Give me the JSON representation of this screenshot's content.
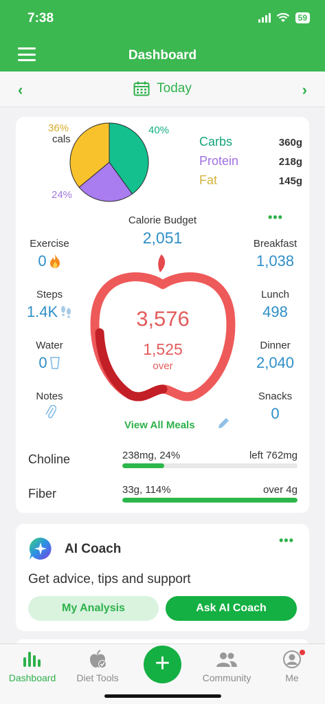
{
  "status": {
    "time": "7:38",
    "battery": "59"
  },
  "nav": {
    "title": "Dashboard"
  },
  "date": {
    "label": "Today"
  },
  "colors": {
    "accent": "#3cb851",
    "carbs": "#13c08e",
    "protein": "#a97cf0",
    "fat": "#f8c22d",
    "value_blue": "#2f8fc8",
    "apple_red": "#e35c5c"
  },
  "pie": {
    "slices": [
      {
        "name": "Carbs",
        "percent": 40,
        "label": "40%",
        "color": "#13c08e"
      },
      {
        "name": "Protein",
        "percent": 24,
        "label": "24%",
        "color": "#a97cf0"
      },
      {
        "name": "Fat",
        "percent": 36,
        "label": "36%",
        "color": "#f8c22d"
      }
    ],
    "cals_label": "cals"
  },
  "macros": [
    {
      "name": "Carbs",
      "value": "360g",
      "color": "#13c08e"
    },
    {
      "name": "Protein",
      "value": "218g",
      "color": "#a97cf0"
    },
    {
      "name": "Fat",
      "value": "145g",
      "color": "#d4b43c"
    }
  ],
  "budget": {
    "label": "Calorie Budget",
    "value": "2,051"
  },
  "left_stats": [
    {
      "label": "Exercise",
      "value": "0",
      "icon": "flame-icon"
    },
    {
      "label": "Steps",
      "value": "1.4K",
      "icon": "footsteps-icon"
    },
    {
      "label": "Water",
      "value": "0",
      "icon": "water-glass-icon"
    },
    {
      "label": "Notes",
      "value": "",
      "icon": "paperclip-icon"
    }
  ],
  "right_stats": [
    {
      "label": "Breakfast",
      "value": "1,038"
    },
    {
      "label": "Lunch",
      "value": "498"
    },
    {
      "label": "Dinner",
      "value": "2,040"
    },
    {
      "label": "Snacks",
      "value": "0"
    }
  ],
  "apple": {
    "total": "3,576",
    "over_value": "1,525",
    "over_label": "over",
    "progress_fraction": 1.0
  },
  "view_meals": "View All Meals",
  "nutrients": [
    {
      "name": "Choline",
      "left": "238mg, 24%",
      "right": "left 762mg",
      "progress": 0.24
    },
    {
      "name": "Fiber",
      "left": "33g, 114%",
      "right": "over 4g",
      "progress": 1.0
    }
  ],
  "coach": {
    "title": "AI Coach",
    "description": "Get advice, tips and support",
    "analysis_label": "My Analysis",
    "ask_label": "Ask AI Coach"
  },
  "tabs": [
    {
      "label": "Dashboard",
      "icon": "bar-chart-icon",
      "active": true
    },
    {
      "label": "Diet Tools",
      "icon": "apple-check-icon",
      "active": false
    },
    {
      "label": "Community",
      "icon": "people-icon",
      "active": false
    },
    {
      "label": "Me",
      "icon": "profile-icon",
      "active": false
    }
  ],
  "add_label": "+"
}
